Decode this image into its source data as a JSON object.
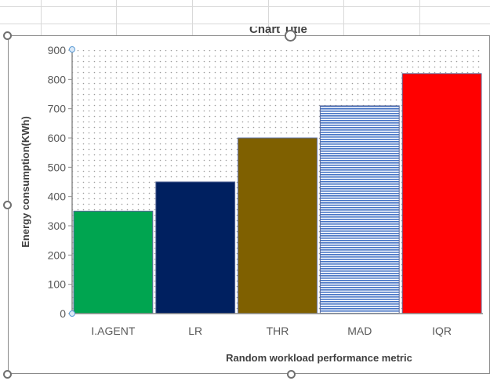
{
  "chart_data": {
    "type": "bar",
    "title": "Chart Title",
    "categories": [
      "I.AGENT",
      "LR",
      "THR",
      "MAD",
      "IQR"
    ],
    "values": [
      350,
      450,
      600,
      710,
      820
    ],
    "xlabel": "Random workload performance metric",
    "ylabel": "Energy consumption(KWh)",
    "ylim": [
      0,
      900
    ],
    "yticks": [
      "0",
      "100",
      "200",
      "300",
      "400",
      "500",
      "600",
      "700",
      "800",
      "900"
    ],
    "bar_colors": [
      "#00a550",
      "#002060",
      "#7f6000",
      "#4472c4",
      "#ff0000"
    ],
    "bar_fills": [
      "solid",
      "solid",
      "solid",
      "horizontal-stripes",
      "solid"
    ],
    "plot_background": "dotted",
    "grid": false,
    "legend": "none"
  }
}
